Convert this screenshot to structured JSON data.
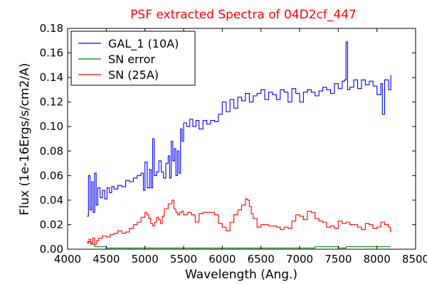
{
  "chart_data": {
    "type": "line",
    "title": "PSF extracted Spectra of 04D2cf_447",
    "title_color": "#ff0000",
    "xlabel": "Wavelength (Ang.)",
    "ylabel": "Flux (1e-16Ergs/s/cm2/A)",
    "xlim": [
      4000,
      8500
    ],
    "ylim": [
      0.0,
      0.18
    ],
    "xticks": [
      4000,
      4500,
      5000,
      5500,
      6000,
      6500,
      7000,
      7500,
      8000,
      8500
    ],
    "yticks": [
      "0.00",
      "0.02",
      "0.04",
      "0.06",
      "0.08",
      "0.10",
      "0.12",
      "0.14",
      "0.16",
      "0.18"
    ],
    "grid": false,
    "legend_position": "top-left",
    "series": [
      {
        "name": "GAL_1 (10A)",
        "color": "#0000ff",
        "x": [
          4250,
          4270,
          4290,
          4310,
          4330,
          4350,
          4370,
          4390,
          4420,
          4450,
          4480,
          4510,
          4540,
          4570,
          4600,
          4650,
          4700,
          4750,
          4800,
          4850,
          4900,
          4950,
          4980,
          5000,
          5030,
          5060,
          5080,
          5100,
          5120,
          5150,
          5180,
          5210,
          5240,
          5270,
          5300,
          5320,
          5340,
          5360,
          5380,
          5400,
          5420,
          5440,
          5460,
          5480,
          5500,
          5540,
          5580,
          5620,
          5660,
          5700,
          5750,
          5800,
          5850,
          5900,
          5950,
          6000,
          6050,
          6100,
          6150,
          6200,
          6250,
          6300,
          6350,
          6400,
          6450,
          6500,
          6550,
          6600,
          6650,
          6700,
          6750,
          6800,
          6850,
          6900,
          6950,
          7000,
          7050,
          7100,
          7150,
          7200,
          7250,
          7300,
          7350,
          7400,
          7450,
          7500,
          7550,
          7580,
          7600,
          7620,
          7650,
          7700,
          7750,
          7800,
          7850,
          7900,
          7950,
          8000,
          8050,
          8070,
          8100,
          8150,
          8180
        ],
        "y": [
          0.027,
          0.06,
          0.032,
          0.055,
          0.03,
          0.062,
          0.036,
          0.05,
          0.042,
          0.048,
          0.041,
          0.05,
          0.046,
          0.051,
          0.049,
          0.052,
          0.051,
          0.056,
          0.055,
          0.058,
          0.06,
          0.062,
          0.048,
          0.071,
          0.05,
          0.065,
          0.05,
          0.09,
          0.06,
          0.063,
          0.072,
          0.063,
          0.058,
          0.07,
          0.076,
          0.058,
          0.088,
          0.072,
          0.082,
          0.06,
          0.08,
          0.062,
          0.098,
          0.088,
          0.103,
          0.1,
          0.106,
          0.1,
          0.105,
          0.098,
          0.105,
          0.102,
          0.105,
          0.104,
          0.11,
          0.12,
          0.112,
          0.122,
          0.115,
          0.124,
          0.121,
          0.127,
          0.12,
          0.125,
          0.127,
          0.13,
          0.122,
          0.128,
          0.126,
          0.122,
          0.13,
          0.128,
          0.12,
          0.131,
          0.127,
          0.12,
          0.128,
          0.13,
          0.128,
          0.125,
          0.129,
          0.132,
          0.13,
          0.127,
          0.135,
          0.131,
          0.137,
          0.138,
          0.169,
          0.13,
          0.132,
          0.138,
          0.131,
          0.138,
          0.134,
          0.137,
          0.133,
          0.126,
          0.135,
          0.11,
          0.138,
          0.13,
          0.142
        ]
      },
      {
        "name": "SN error",
        "color": "#008000",
        "x": [
          4250,
          4300,
          4350,
          4400,
          4500,
          4600,
          4800,
          5000,
          5500,
          6000,
          6500,
          7000,
          7200,
          7500,
          7600,
          7800,
          8000,
          8100,
          8180
        ],
        "y": [
          0.006,
          0.004,
          0.002,
          0.002,
          0.001,
          0.001,
          0.001,
          0.001,
          0.001,
          0.001,
          0.001,
          0.001,
          0.002,
          0.001,
          0.002,
          0.002,
          0.002,
          0.002,
          0.002
        ]
      },
      {
        "name": "SN (25A)",
        "color": "#ff0000",
        "x": [
          4250,
          4275,
          4300,
          4325,
          4350,
          4375,
          4400,
          4450,
          4500,
          4550,
          4600,
          4650,
          4700,
          4750,
          4800,
          4850,
          4900,
          4950,
          5000,
          5025,
          5050,
          5075,
          5100,
          5125,
          5150,
          5175,
          5200,
          5225,
          5250,
          5300,
          5350,
          5375,
          5400,
          5425,
          5450,
          5475,
          5500,
          5550,
          5600,
          5650,
          5700,
          5750,
          5800,
          5850,
          5900,
          5950,
          6000,
          6050,
          6100,
          6150,
          6200,
          6250,
          6300,
          6325,
          6350,
          6375,
          6400,
          6450,
          6500,
          6550,
          6600,
          6650,
          6700,
          6750,
          6800,
          6850,
          6900,
          6950,
          7000,
          7050,
          7100,
          7150,
          7200,
          7250,
          7300,
          7350,
          7400,
          7450,
          7500,
          7550,
          7600,
          7650,
          7700,
          7750,
          7800,
          7850,
          7900,
          7950,
          8000,
          8050,
          8100,
          8150,
          8175
        ],
        "y": [
          0.005,
          0.008,
          0.005,
          0.009,
          0.004,
          0.007,
          0.009,
          0.011,
          0.01,
          0.012,
          0.013,
          0.015,
          0.013,
          0.014,
          0.017,
          0.02,
          0.022,
          0.026,
          0.03,
          0.028,
          0.025,
          0.021,
          0.019,
          0.022,
          0.026,
          0.024,
          0.021,
          0.027,
          0.033,
          0.037,
          0.04,
          0.033,
          0.03,
          0.028,
          0.03,
          0.031,
          0.028,
          0.03,
          0.028,
          0.022,
          0.029,
          0.03,
          0.03,
          0.03,
          0.028,
          0.021,
          0.018,
          0.015,
          0.022,
          0.028,
          0.032,
          0.036,
          0.041,
          0.04,
          0.035,
          0.029,
          0.025,
          0.018,
          0.02,
          0.02,
          0.019,
          0.019,
          0.018,
          0.016,
          0.018,
          0.017,
          0.023,
          0.028,
          0.027,
          0.024,
          0.031,
          0.03,
          0.025,
          0.023,
          0.022,
          0.018,
          0.019,
          0.017,
          0.023,
          0.021,
          0.022,
          0.02,
          0.02,
          0.018,
          0.016,
          0.021,
          0.02,
          0.017,
          0.018,
          0.022,
          0.02,
          0.018,
          0.014
        ]
      }
    ]
  }
}
